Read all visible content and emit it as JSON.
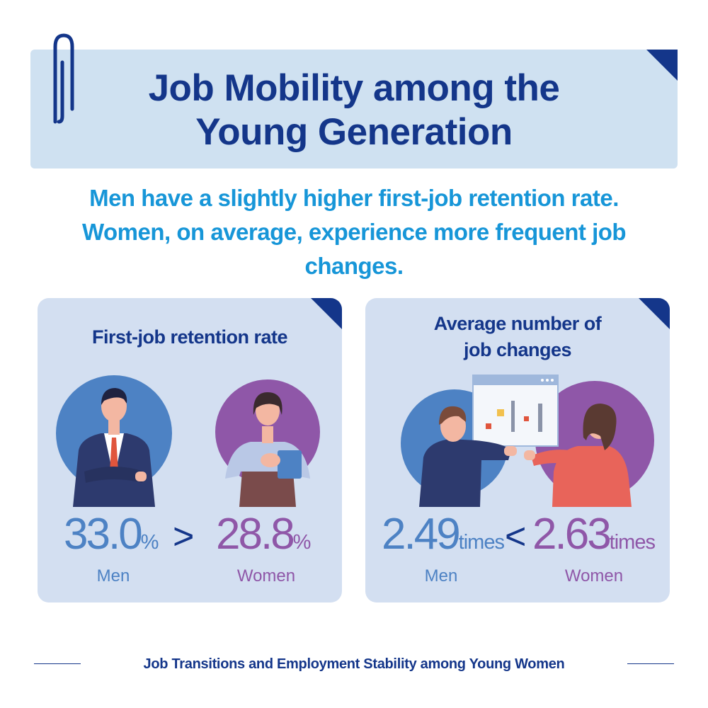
{
  "header": {
    "title_line1": "Job Mobility among the",
    "title_line2": "Young Generation",
    "subtitle_line1": "Men have a slightly higher first-job retention rate.",
    "subtitle_line2": "Women, on average, experience more frequent job",
    "subtitle_line3": "changes."
  },
  "retention_card": {
    "title": "First-job retention rate",
    "men_value": "33.0",
    "men_unit": "%",
    "comparator": ">",
    "women_value": "28.8",
    "women_unit": "%",
    "men_label": "Men",
    "women_label": "Women"
  },
  "changes_card": {
    "title_line1": "Average number of",
    "title_line2": "job changes",
    "men_value": "2.49",
    "men_unit": "times",
    "comparator": "<",
    "women_value": "2.63",
    "women_unit": "times",
    "men_label": "Men",
    "women_label": "Women"
  },
  "footer": {
    "text": "Job Transitions and Employment Stability among Young Women"
  },
  "colors": {
    "navy": "#14368a",
    "light_blue_panel": "#cfe1f1",
    "card_bg": "#d3dff1",
    "men_blue": "#4d82c4",
    "women_purple": "#8f57a8",
    "subtitle_blue": "#1796d8"
  },
  "icons": [
    "paperclip-icon",
    "man-illustration",
    "woman-illustration",
    "chart-board-illustration"
  ]
}
